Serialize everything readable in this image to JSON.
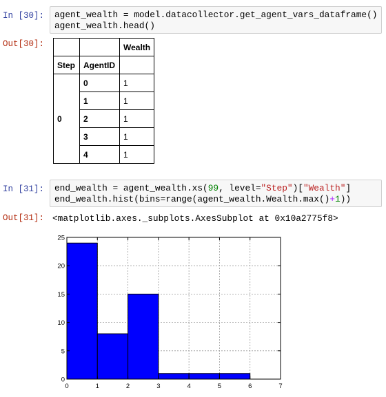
{
  "cells": [
    {
      "prompt_in": "In [30]:",
      "code_lines": [
        "agent_wealth = model.datacollector.get_agent_vars_dataframe()",
        "agent_wealth.head()"
      ],
      "prompt_out": "Out[30]:",
      "table": {
        "column_header": "Wealth",
        "index_names": [
          "Step",
          "AgentID"
        ],
        "step_value": "0",
        "rows": [
          {
            "agent_id": "0",
            "wealth": "1"
          },
          {
            "agent_id": "1",
            "wealth": "1"
          },
          {
            "agent_id": "2",
            "wealth": "1"
          },
          {
            "agent_id": "3",
            "wealth": "1"
          },
          {
            "agent_id": "4",
            "wealth": "1"
          }
        ]
      }
    },
    {
      "prompt_in": "In [31]:",
      "code_line1": {
        "a": "end_wealth = agent_wealth.xs(",
        "num": "99",
        "b": ", level=",
        "str1": "\"Step\"",
        "c": ")[",
        "str2": "\"Wealth\"",
        "d": "]"
      },
      "code_line2": {
        "a": "end_wealth.hist(bins=range(agent_wealth.Wealth.max()",
        "op": "+",
        "num": "1",
        "b": "))"
      },
      "prompt_out": "Out[31]:",
      "output_text": "<matplotlib.axes._subplots.AxesSubplot at 0x10a2775f8>"
    }
  ],
  "colors": {
    "bar_fill": "#0000ff",
    "grid": "#9a9a9a",
    "prompt_in": "#303f9f",
    "prompt_out": "#b22b0f"
  },
  "chart_data": {
    "type": "bar",
    "bins": [
      [
        0,
        1
      ],
      [
        1,
        2
      ],
      [
        2,
        3
      ],
      [
        3,
        4
      ],
      [
        4,
        5
      ],
      [
        5,
        6
      ]
    ],
    "values": [
      24,
      8,
      15,
      1,
      1,
      1
    ],
    "xlim": [
      0,
      7
    ],
    "ylim": [
      0,
      25
    ],
    "xticks": [
      "0",
      "1",
      "2",
      "3",
      "4",
      "5",
      "6",
      "7"
    ],
    "yticks": [
      "0",
      "5",
      "10",
      "15",
      "20",
      "25"
    ],
    "grid": true
  }
}
